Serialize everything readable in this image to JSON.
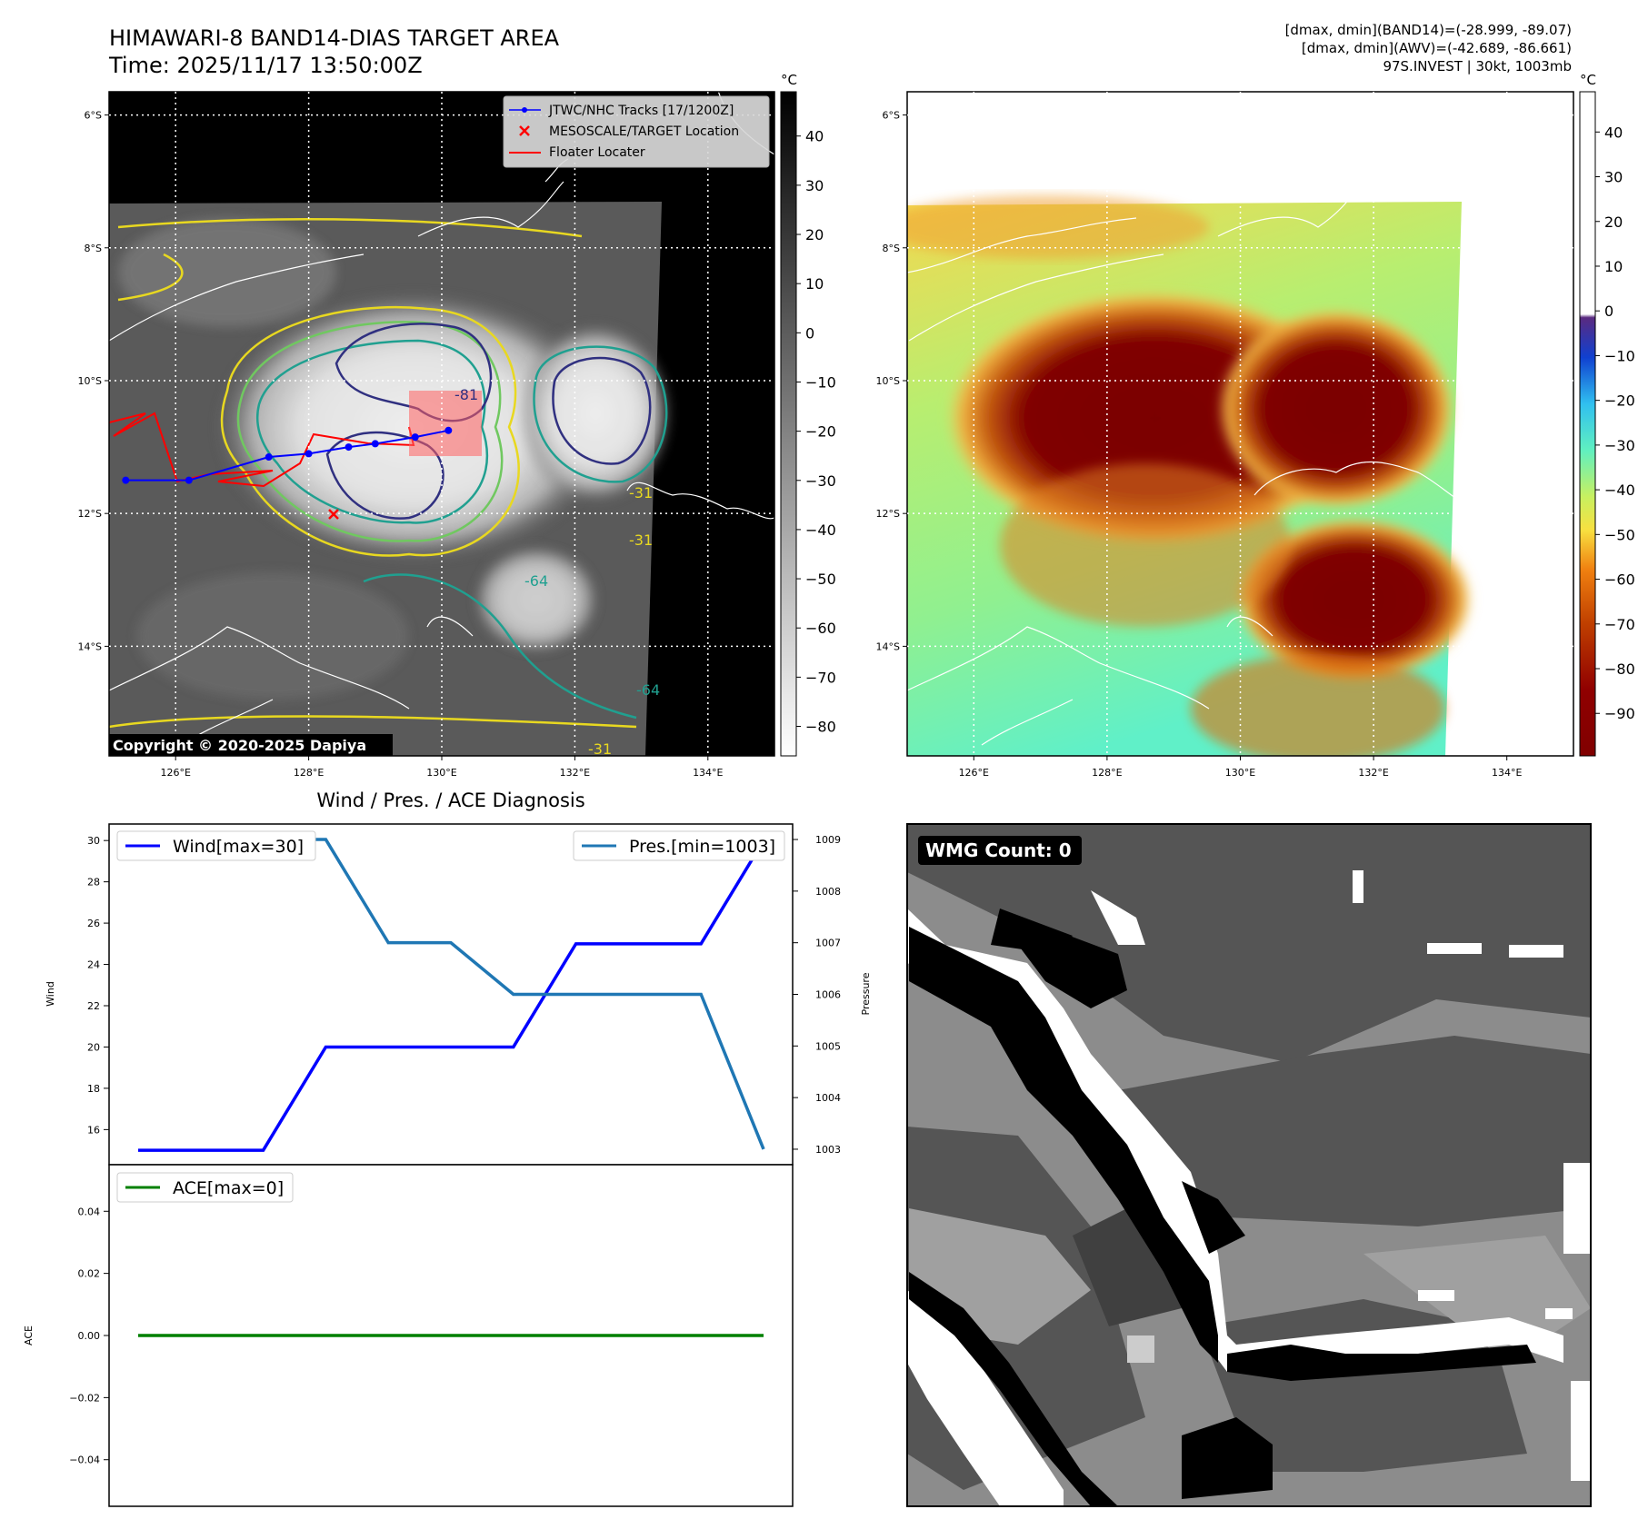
{
  "header": {
    "title": "HIMAWARI-8 BAND14-DIAS TARGET AREA",
    "time": "Time: 2025/11/17 13:50:00Z",
    "stats_band14": "[dmax, dmin](BAND14)=(-28.999, -89.07)",
    "stats_awv": "[dmax, dmin](AWV)=(-42.689, -86.661)",
    "storm_info": "97S.INVEST | 30kt, 1003mb"
  },
  "map": {
    "lon_ticks": [
      "126°E",
      "128°E",
      "130°E",
      "132°E",
      "134°E"
    ],
    "lat_ticks": [
      "6°S",
      "8°S",
      "10°S",
      "12°S",
      "14°S"
    ],
    "copyright": "Copyright © 2020-2025 Dapiya",
    "legend": [
      {
        "label": "JTWC/NHC Tracks [17/1200Z]",
        "color": "#0000ff"
      },
      {
        "label": "MESOSCALE/TARGET Location",
        "color": "#ff0000"
      },
      {
        "label": "Floater Locater",
        "color": "#ff0000"
      }
    ],
    "contour_labels": [
      "-81",
      "-31",
      "-31",
      "-64",
      "-64",
      "-31"
    ],
    "track_points": [
      [
        125.25,
        -11.5
      ],
      [
        126.2,
        -11.5
      ],
      [
        127.4,
        -11.15
      ],
      [
        128.0,
        -11.1
      ],
      [
        128.6,
        -11.0
      ],
      [
        129.0,
        -10.95
      ],
      [
        129.6,
        -10.85
      ],
      [
        130.1,
        -10.75
      ]
    ]
  },
  "colorbar_band14": {
    "unit": "°C",
    "ticks": [
      "40",
      "30",
      "20",
      "10",
      "0",
      "−10",
      "−20",
      "−30",
      "−40",
      "−50",
      "−60",
      "−70",
      "−80"
    ]
  },
  "colorbar_awv": {
    "unit": "°C",
    "ticks": [
      "40",
      "30",
      "20",
      "10",
      "0",
      "−10",
      "−20",
      "−30",
      "−40",
      "−50",
      "−60",
      "−70",
      "−80",
      "−90"
    ]
  },
  "wmg": {
    "label": "WMG Count: 0"
  },
  "chart_data": [
    {
      "type": "line",
      "title": "Wind / Pres. / ACE Diagnosis",
      "x": [
        0,
        1,
        2,
        3,
        4,
        5,
        6,
        7,
        8,
        9,
        10
      ],
      "series": [
        {
          "name": "Wind[max=30]",
          "axis": "left",
          "color": "#0000ff",
          "values": [
            15,
            15,
            15,
            20,
            20,
            20,
            20,
            25,
            25,
            25,
            30
          ]
        },
        {
          "name": "Pres.[min=1003]",
          "axis": "right",
          "color": "#1f77b4",
          "values": [
            1009,
            1009,
            1009,
            1009,
            1007,
            1007,
            1006,
            1006,
            1006,
            1006,
            1003
          ]
        }
      ],
      "ylabel": "Wind",
      "y2label": "Pressure",
      "ylim": [
        14.3,
        30.8
      ],
      "y2lim": [
        1002.7,
        1009.3
      ],
      "yticks": [
        16,
        18,
        20,
        22,
        24,
        26,
        28,
        30
      ],
      "y2ticks": [
        1003,
        1004,
        1005,
        1006,
        1007,
        1008,
        1009
      ]
    },
    {
      "type": "line",
      "x": [
        0,
        1,
        2,
        3,
        4,
        5,
        6,
        7,
        8,
        9,
        10
      ],
      "series": [
        {
          "name": "ACE[max=0]",
          "color": "#008000",
          "values": [
            0,
            0,
            0,
            0,
            0,
            0,
            0,
            0,
            0,
            0,
            0
          ]
        }
      ],
      "ylabel": "ACE",
      "ylim": [
        -0.055,
        0.055
      ],
      "yticks": [
        0.04,
        0.02,
        0.0,
        -0.02,
        -0.04
      ]
    }
  ]
}
